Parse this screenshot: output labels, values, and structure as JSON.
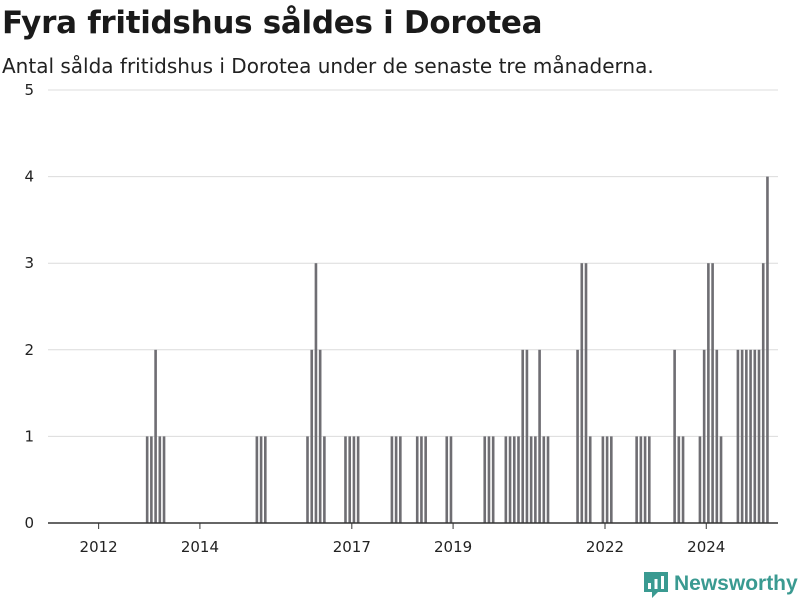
{
  "header": {
    "title": "Fyra fritidshus såldes i Dorotea",
    "subtitle": "Antal sålda fritidshus i Dorotea under de senaste tre månaderna."
  },
  "brand": {
    "name": "Newsworthy",
    "color": "#3a9a91"
  },
  "colors": {
    "bar": "#6f6e73",
    "highlight": "#119b8f",
    "grid": "#dcdcdc",
    "axis": "#333333"
  },
  "chart_data": {
    "type": "bar",
    "x_unit": "month",
    "x_range": [
      "2011-01",
      "2025-06"
    ],
    "ylim": [
      0,
      5
    ],
    "yticks": [
      0,
      1,
      2,
      3,
      4,
      5
    ],
    "xticks": [
      {
        "label": "2012",
        "date": "2012-01"
      },
      {
        "label": "2014",
        "date": "2014-01"
      },
      {
        "label": "2017",
        "date": "2017-01"
      },
      {
        "label": "2019",
        "date": "2019-01"
      },
      {
        "label": "2022",
        "date": "2022-01"
      },
      {
        "label": "2024",
        "date": "2024-01"
      }
    ],
    "grid": true,
    "legend": "none",
    "highlight_index": 86,
    "highlight_label": "4",
    "series": [
      {
        "values": [
          {
            "date": "2012-12",
            "value": 1
          },
          {
            "date": "2013-01",
            "value": 1
          },
          {
            "date": "2013-02",
            "value": 2
          },
          {
            "date": "2013-03",
            "value": 1
          },
          {
            "date": "2013-04",
            "value": 1
          },
          {
            "date": "2015-02",
            "value": 1
          },
          {
            "date": "2015-03",
            "value": 1
          },
          {
            "date": "2015-04",
            "value": 1
          },
          {
            "date": "2016-02",
            "value": 1
          },
          {
            "date": "2016-03",
            "value": 2
          },
          {
            "date": "2016-04",
            "value": 3
          },
          {
            "date": "2016-05",
            "value": 2
          },
          {
            "date": "2016-06",
            "value": 1
          },
          {
            "date": "2016-11",
            "value": 1
          },
          {
            "date": "2016-12",
            "value": 1
          },
          {
            "date": "2017-01",
            "value": 1
          },
          {
            "date": "2017-02",
            "value": 1
          },
          {
            "date": "2017-10",
            "value": 1
          },
          {
            "date": "2017-11",
            "value": 1
          },
          {
            "date": "2017-12",
            "value": 1
          },
          {
            "date": "2018-04",
            "value": 1
          },
          {
            "date": "2018-05",
            "value": 1
          },
          {
            "date": "2018-06",
            "value": 1
          },
          {
            "date": "2018-11",
            "value": 1
          },
          {
            "date": "2018-12",
            "value": 1
          },
          {
            "date": "2019-08",
            "value": 1
          },
          {
            "date": "2019-09",
            "value": 1
          },
          {
            "date": "2019-10",
            "value": 1
          },
          {
            "date": "2020-01",
            "value": 1
          },
          {
            "date": "2020-02",
            "value": 1
          },
          {
            "date": "2020-03",
            "value": 1
          },
          {
            "date": "2020-04",
            "value": 1
          },
          {
            "date": "2020-05",
            "value": 2
          },
          {
            "date": "2020-06",
            "value": 2
          },
          {
            "date": "2020-07",
            "value": 1
          },
          {
            "date": "2020-08",
            "value": 1
          },
          {
            "date": "2020-09",
            "value": 2
          },
          {
            "date": "2020-10",
            "value": 1
          },
          {
            "date": "2020-11",
            "value": 1
          },
          {
            "date": "2021-06",
            "value": 2
          },
          {
            "date": "2021-07",
            "value": 3
          },
          {
            "date": "2021-08",
            "value": 3
          },
          {
            "date": "2021-09",
            "value": 1
          },
          {
            "date": "2021-12",
            "value": 1
          },
          {
            "date": "2022-01",
            "value": 1
          },
          {
            "date": "2022-02",
            "value": 1
          },
          {
            "date": "2022-08",
            "value": 1
          },
          {
            "date": "2022-09",
            "value": 1
          },
          {
            "date": "2022-10",
            "value": 1
          },
          {
            "date": "2022-11",
            "value": 1
          },
          {
            "date": "2023-05",
            "value": 2
          },
          {
            "date": "2023-06",
            "value": 1
          },
          {
            "date": "2023-07",
            "value": 1
          },
          {
            "date": "2023-11",
            "value": 1
          },
          {
            "date": "2023-12",
            "value": 2
          },
          {
            "date": "2024-01",
            "value": 3
          },
          {
            "date": "2024-02",
            "value": 3
          },
          {
            "date": "2024-03",
            "value": 2
          },
          {
            "date": "2024-04",
            "value": 1
          },
          {
            "date": "2024-08",
            "value": 2
          },
          {
            "date": "2024-09",
            "value": 2
          },
          {
            "date": "2024-10",
            "value": 2
          },
          {
            "date": "2024-11",
            "value": 2
          },
          {
            "date": "2024-12",
            "value": 2
          },
          {
            "date": "2025-01",
            "value": 2
          },
          {
            "date": "2025-02",
            "value": 3
          },
          {
            "date": "2025-03",
            "value": 4
          }
        ]
      }
    ]
  }
}
